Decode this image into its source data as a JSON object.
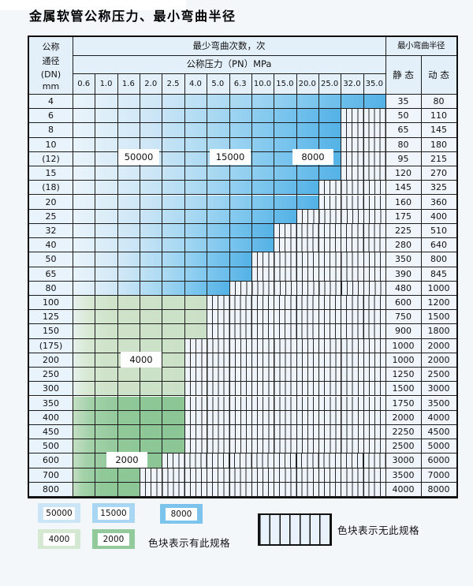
{
  "title": "金属软管公称压力、最小弯曲半径",
  "table": {
    "header": {
      "dn_lines": [
        "公称",
        "通径",
        "(DN)",
        "mm"
      ],
      "cycles_header": "最少弯曲次数，次",
      "pressure_header": "公称压力（PN）MPa",
      "pressures": [
        "0.6",
        "1.0",
        "1.6",
        "2.0",
        "2.5",
        "4.0",
        "5.0",
        "6.3",
        "10.0",
        "15.0",
        "20.0",
        "25.0",
        "32.0",
        "35.0"
      ],
      "radius_header": "最小弯曲半径",
      "static_label": "静 态",
      "dynamic_label": "动 态"
    },
    "rows": [
      {
        "dn": "4",
        "max_pn": "35.0",
        "zone": "blue",
        "static": "35",
        "dynamic": "80"
      },
      {
        "dn": "6",
        "max_pn": "25.0",
        "zone": "blue",
        "static": "50",
        "dynamic": "110"
      },
      {
        "dn": "8",
        "max_pn": "25.0",
        "zone": "blue",
        "static": "65",
        "dynamic": "145"
      },
      {
        "dn": "10",
        "max_pn": "25.0",
        "zone": "blue",
        "static": "80",
        "dynamic": "180"
      },
      {
        "dn": "(12)",
        "max_pn": "25.0",
        "zone": "blue",
        "static": "95",
        "dynamic": "215"
      },
      {
        "dn": "15",
        "max_pn": "25.0",
        "zone": "blue",
        "static": "120",
        "dynamic": "270"
      },
      {
        "dn": "(18)",
        "max_pn": "20.0",
        "zone": "blue",
        "static": "145",
        "dynamic": "325"
      },
      {
        "dn": "20",
        "max_pn": "20.0",
        "zone": "blue",
        "static": "160",
        "dynamic": "360"
      },
      {
        "dn": "25",
        "max_pn": "15.0",
        "zone": "blue",
        "static": "175",
        "dynamic": "400"
      },
      {
        "dn": "32",
        "max_pn": "10.0",
        "zone": "blue",
        "static": "225",
        "dynamic": "510"
      },
      {
        "dn": "40",
        "max_pn": "10.0",
        "zone": "blue",
        "static": "280",
        "dynamic": "640"
      },
      {
        "dn": "50",
        "max_pn": "6.3",
        "zone": "blue",
        "static": "350",
        "dynamic": "800"
      },
      {
        "dn": "65",
        "max_pn": "6.3",
        "zone": "blue",
        "static": "390",
        "dynamic": "845"
      },
      {
        "dn": "80",
        "max_pn": "5.0",
        "zone": "blue",
        "static": "480",
        "dynamic": "1000"
      },
      {
        "dn": "100",
        "max_pn": "4.0",
        "zone": "green4000",
        "static": "600",
        "dynamic": "1200"
      },
      {
        "dn": "125",
        "max_pn": "4.0",
        "zone": "green4000",
        "static": "750",
        "dynamic": "1500"
      },
      {
        "dn": "150",
        "max_pn": "4.0",
        "zone": "green4000",
        "static": "900",
        "dynamic": "1800"
      },
      {
        "dn": "(175)",
        "max_pn": "2.5",
        "zone": "green4000",
        "static": "1000",
        "dynamic": "2000"
      },
      {
        "dn": "200",
        "max_pn": "2.5",
        "zone": "green4000",
        "static": "1000",
        "dynamic": "2000"
      },
      {
        "dn": "250",
        "max_pn": "2.5",
        "zone": "green4000",
        "static": "1250",
        "dynamic": "2500"
      },
      {
        "dn": "300",
        "max_pn": "2.5",
        "zone": "green4000",
        "static": "1500",
        "dynamic": "3000"
      },
      {
        "dn": "350",
        "max_pn": "2.5",
        "zone": "green2000",
        "static": "1750",
        "dynamic": "3500"
      },
      {
        "dn": "400",
        "max_pn": "2.5",
        "zone": "green2000",
        "static": "2000",
        "dynamic": "4000"
      },
      {
        "dn": "450",
        "max_pn": "2.5",
        "zone": "green2000",
        "static": "2250",
        "dynamic": "4500"
      },
      {
        "dn": "500",
        "max_pn": "2.5",
        "zone": "green2000",
        "static": "2500",
        "dynamic": "5000"
      },
      {
        "dn": "600",
        "max_pn": "2.0",
        "zone": "green2000",
        "static": "3000",
        "dynamic": "6000"
      },
      {
        "dn": "700",
        "max_pn": "1.6",
        "zone": "green2000",
        "static": "3500",
        "dynamic": "7000"
      },
      {
        "dn": "800",
        "max_pn": "1.6",
        "zone": "green2000",
        "static": "4000",
        "dynamic": "8000"
      }
    ],
    "annotations": [
      {
        "label": "50000"
      },
      {
        "label": "15000"
      },
      {
        "label": "8000"
      },
      {
        "label": "4000"
      },
      {
        "label": "2000"
      }
    ]
  },
  "legend": {
    "items": [
      {
        "label": "50000",
        "color": "#cbe4f6"
      },
      {
        "label": "15000",
        "color": "#a9d6f2"
      },
      {
        "label": "8000",
        "color": "#7cc4ec"
      },
      {
        "label": "4000",
        "color": "#d5e8d1"
      },
      {
        "label": "2000",
        "color": "#92ca9c"
      }
    ],
    "has_spec_note": "色块表示有此规格",
    "no_spec_note": "色块表示无此规格"
  },
  "chart_data": {
    "type": "heatmap",
    "title": "金属软管公称压力、最小弯曲半径",
    "xlabel": "公称压力（PN）MPa",
    "x_ticks": [
      0.6,
      1.0,
      1.6,
      2.0,
      2.5,
      4.0,
      5.0,
      6.3,
      10.0,
      15.0,
      20.0,
      25.0,
      32.0,
      35.0
    ],
    "ylabel": "公称通径 (DN) mm",
    "value_header": "最少弯曲次数，次",
    "radius_header": "最小弯曲半径",
    "rows": [
      {
        "dn": "4",
        "available_max_pn": 35.0,
        "static_radius": 35,
        "dynamic_radius": 80
      },
      {
        "dn": "6",
        "available_max_pn": 25.0,
        "static_radius": 50,
        "dynamic_radius": 110
      },
      {
        "dn": "8",
        "available_max_pn": 25.0,
        "static_radius": 65,
        "dynamic_radius": 145
      },
      {
        "dn": "10",
        "available_max_pn": 25.0,
        "static_radius": 80,
        "dynamic_radius": 180
      },
      {
        "dn": "(12)",
        "available_max_pn": 25.0,
        "static_radius": 95,
        "dynamic_radius": 215
      },
      {
        "dn": "15",
        "available_max_pn": 25.0,
        "static_radius": 120,
        "dynamic_radius": 270
      },
      {
        "dn": "(18)",
        "available_max_pn": 20.0,
        "static_radius": 145,
        "dynamic_radius": 325
      },
      {
        "dn": "20",
        "available_max_pn": 20.0,
        "static_radius": 160,
        "dynamic_radius": 360
      },
      {
        "dn": "25",
        "available_max_pn": 15.0,
        "static_radius": 175,
        "dynamic_radius": 400
      },
      {
        "dn": "32",
        "available_max_pn": 10.0,
        "static_radius": 225,
        "dynamic_radius": 510
      },
      {
        "dn": "40",
        "available_max_pn": 10.0,
        "static_radius": 280,
        "dynamic_radius": 640
      },
      {
        "dn": "50",
        "available_max_pn": 6.3,
        "static_radius": 350,
        "dynamic_radius": 800
      },
      {
        "dn": "65",
        "available_max_pn": 6.3,
        "static_radius": 390,
        "dynamic_radius": 845
      },
      {
        "dn": "80",
        "available_max_pn": 5.0,
        "static_radius": 480,
        "dynamic_radius": 1000
      },
      {
        "dn": "100",
        "available_max_pn": 4.0,
        "static_radius": 600,
        "dynamic_radius": 1200
      },
      {
        "dn": "125",
        "available_max_pn": 4.0,
        "static_radius": 750,
        "dynamic_radius": 1500
      },
      {
        "dn": "150",
        "available_max_pn": 4.0,
        "static_radius": 900,
        "dynamic_radius": 1800
      },
      {
        "dn": "(175)",
        "available_max_pn": 2.5,
        "static_radius": 1000,
        "dynamic_radius": 2000
      },
      {
        "dn": "200",
        "available_max_pn": 2.5,
        "static_radius": 1000,
        "dynamic_radius": 2000
      },
      {
        "dn": "250",
        "available_max_pn": 2.5,
        "static_radius": 1250,
        "dynamic_radius": 2500
      },
      {
        "dn": "300",
        "available_max_pn": 2.5,
        "static_radius": 1500,
        "dynamic_radius": 3000
      },
      {
        "dn": "350",
        "available_max_pn": 2.5,
        "static_radius": 1750,
        "dynamic_radius": 3500
      },
      {
        "dn": "400",
        "available_max_pn": 2.5,
        "static_radius": 2000,
        "dynamic_radius": 4000
      },
      {
        "dn": "450",
        "available_max_pn": 2.5,
        "static_radius": 2250,
        "dynamic_radius": 4500
      },
      {
        "dn": "500",
        "available_max_pn": 2.5,
        "static_radius": 2500,
        "dynamic_radius": 5000
      },
      {
        "dn": "600",
        "available_max_pn": 2.0,
        "static_radius": 3000,
        "dynamic_radius": 6000
      },
      {
        "dn": "700",
        "available_max_pn": 1.6,
        "static_radius": 3500,
        "dynamic_radius": 7000
      },
      {
        "dn": "800",
        "available_max_pn": 1.6,
        "static_radius": 4000,
        "dynamic_radius": 8000
      }
    ],
    "cycle_color_zones": [
      {
        "cycles": 50000,
        "applies": "blue rows DN4-80, low PN columns (≈0.6-2.5)"
      },
      {
        "cycles": 15000,
        "applies": "blue rows DN4-80, mid PN columns (≈4.0-6.3)"
      },
      {
        "cycles": 8000,
        "applies": "blue rows DN4-80, high PN columns (≈10.0-35.0)"
      },
      {
        "cycles": 4000,
        "applies": "green rows DN100-300"
      },
      {
        "cycles": 2000,
        "applies": "green rows DN350-800"
      }
    ],
    "legend_notes": [
      "色块表示有此规格",
      "色块表示无此规格"
    ],
    "grid": true,
    "legend_position": "bottom"
  }
}
